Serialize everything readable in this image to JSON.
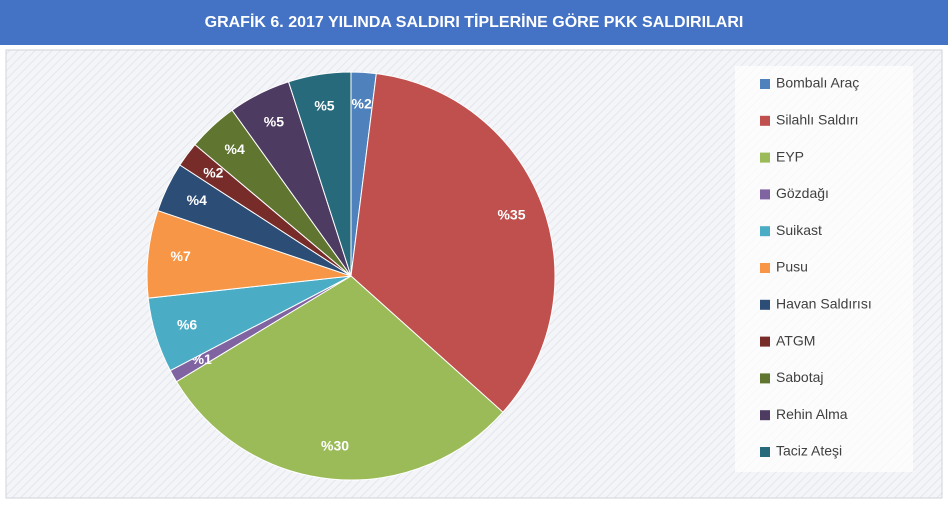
{
  "chart_data": {
    "type": "pie",
    "title": "GRAFİK 6. 2017 YILINDA SALDIRI TİPLERİNE GÖRE PKK SALDIRILARI",
    "categories": [
      "Bombalı Araç",
      "Silahlı Saldırı",
      "EYP",
      "Gözdağı",
      "Suikast",
      "Pusu",
      "Havan Saldırısı",
      "ATGM",
      "Sabotaj",
      "Rehin Alma",
      "Taciz Ateşi"
    ],
    "values": [
      2,
      35,
      30,
      1,
      6,
      7,
      4,
      2,
      4,
      5,
      5
    ],
    "value_labels": [
      "%2",
      "%35",
      "%30",
      "%1",
      "%6",
      "%7",
      "%4",
      "%2",
      "%4",
      "%5",
      "%5"
    ],
    "colors": [
      "#4f81bd",
      "#c0504d",
      "#9bbb59",
      "#8064a2",
      "#4bacc6",
      "#f79646",
      "#2c4d75",
      "#772c2a",
      "#5f7530",
      "#4d3b62",
      "#276a7c"
    ],
    "legend": "right"
  }
}
